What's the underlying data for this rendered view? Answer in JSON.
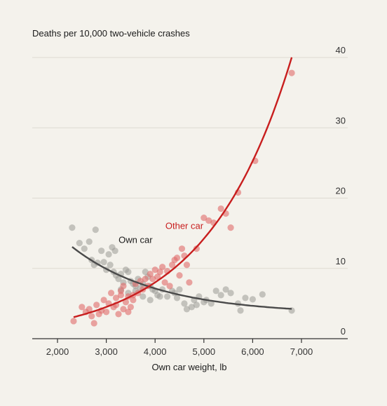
{
  "chart_data": {
    "type": "scatter",
    "title": "Deaths per 10,000 two-vehicle crashes",
    "xlabel": "Own car weight, lb",
    "ylabel": "",
    "xlim": [
      1500,
      7700
    ],
    "ylim": [
      0,
      40
    ],
    "x_ticks": [
      2000,
      3000,
      4000,
      5000,
      6000,
      7000
    ],
    "x_tick_labels": [
      "2,000",
      "3,000",
      "4,000",
      "5,000",
      "6,000",
      "7,000"
    ],
    "y_ticks": [
      0,
      10,
      20,
      30,
      40
    ],
    "y_tick_labels": [
      "0",
      "10",
      "20",
      "30",
      "40"
    ],
    "grid": true,
    "y_axis_side": "right",
    "series": [
      {
        "name": "Own car",
        "color": "#9a9a96",
        "line_color": "#4a4a4a",
        "points": [
          [
            2300,
            15.8
          ],
          [
            2450,
            13.6
          ],
          [
            2550,
            12.8
          ],
          [
            2650,
            13.8
          ],
          [
            2780,
            15.5
          ],
          [
            2700,
            11.2
          ],
          [
            2750,
            10.5
          ],
          [
            2820,
            10.8
          ],
          [
            2900,
            12.5
          ],
          [
            2950,
            10.9
          ],
          [
            3050,
            12.0
          ],
          [
            3120,
            13.0
          ],
          [
            3180,
            12.5
          ],
          [
            3000,
            9.8
          ],
          [
            3080,
            10.5
          ],
          [
            3150,
            9.5
          ],
          [
            3200,
            9.0
          ],
          [
            3250,
            8.5
          ],
          [
            3300,
            9.2
          ],
          [
            3350,
            8.0
          ],
          [
            3400,
            9.8
          ],
          [
            3450,
            9.5
          ],
          [
            3500,
            8.2
          ],
          [
            3550,
            7.8
          ],
          [
            3600,
            7.5
          ],
          [
            3650,
            8.5
          ],
          [
            3700,
            7.2
          ],
          [
            3750,
            7.8
          ],
          [
            3800,
            9.5
          ],
          [
            3850,
            8.8
          ],
          [
            3900,
            7.5
          ],
          [
            3950,
            7.0
          ],
          [
            4000,
            6.8
          ],
          [
            4050,
            6.2
          ],
          [
            3300,
            7.0
          ],
          [
            3450,
            6.5
          ],
          [
            3600,
            6.8
          ],
          [
            3750,
            6.0
          ],
          [
            3900,
            5.5
          ],
          [
            4100,
            6.0
          ],
          [
            4150,
            7.0
          ],
          [
            4250,
            6.0
          ],
          [
            4350,
            6.8
          ],
          [
            4400,
            6.5
          ],
          [
            4450,
            5.8
          ],
          [
            4500,
            7.0
          ],
          [
            4600,
            5.0
          ],
          [
            4650,
            4.2
          ],
          [
            4750,
            4.5
          ],
          [
            4800,
            5.5
          ],
          [
            4850,
            4.8
          ],
          [
            4900,
            6.0
          ],
          [
            5000,
            5.2
          ],
          [
            5050,
            5.5
          ],
          [
            5150,
            5.0
          ],
          [
            5250,
            6.8
          ],
          [
            5350,
            6.2
          ],
          [
            5450,
            7.0
          ],
          [
            5550,
            6.5
          ],
          [
            5700,
            5.0
          ],
          [
            5750,
            4.0
          ],
          [
            5850,
            5.8
          ],
          [
            6000,
            5.6
          ],
          [
            6200,
            6.3
          ],
          [
            6800,
            4.0
          ]
        ]
      },
      {
        "name": "Other car",
        "color": "#e06a6a",
        "line_color": "#c81e1e",
        "points": [
          [
            2330,
            2.5
          ],
          [
            2500,
            4.5
          ],
          [
            2580,
            3.8
          ],
          [
            2650,
            4.2
          ],
          [
            2700,
            3.2
          ],
          [
            2750,
            2.2
          ],
          [
            2800,
            4.8
          ],
          [
            2850,
            3.5
          ],
          [
            2900,
            4.0
          ],
          [
            2950,
            5.5
          ],
          [
            3000,
            3.8
          ],
          [
            3050,
            5.0
          ],
          [
            3100,
            6.5
          ],
          [
            3150,
            4.5
          ],
          [
            3200,
            5.8
          ],
          [
            3250,
            3.5
          ],
          [
            3300,
            6.8
          ],
          [
            3350,
            7.5
          ],
          [
            3400,
            5.2
          ],
          [
            3450,
            6.0
          ],
          [
            3500,
            4.5
          ],
          [
            3550,
            5.5
          ],
          [
            3600,
            7.8
          ],
          [
            3650,
            6.5
          ],
          [
            3700,
            8.2
          ],
          [
            3750,
            7.0
          ],
          [
            3800,
            8.5
          ],
          [
            3850,
            7.5
          ],
          [
            3900,
            9.2
          ],
          [
            3950,
            8.5
          ],
          [
            4000,
            9.8
          ],
          [
            4050,
            8.8
          ],
          [
            4100,
            9.5
          ],
          [
            4150,
            10.2
          ],
          [
            4200,
            8.0
          ],
          [
            4250,
            9.6
          ],
          [
            4300,
            7.5
          ],
          [
            4350,
            10.5
          ],
          [
            4400,
            11.2
          ],
          [
            4450,
            11.5
          ],
          [
            4500,
            9.0
          ],
          [
            4550,
            12.8
          ],
          [
            4600,
            11.8
          ],
          [
            4650,
            10.5
          ],
          [
            4700,
            8.0
          ],
          [
            3200,
            4.8
          ],
          [
            3350,
            4.2
          ],
          [
            3450,
            3.8
          ],
          [
            3550,
            6.2
          ],
          [
            3300,
            6.2
          ],
          [
            4850,
            12.8
          ],
          [
            5000,
            17.2
          ],
          [
            5100,
            16.8
          ],
          [
            5200,
            16.5
          ],
          [
            5350,
            18.5
          ],
          [
            5450,
            17.8
          ],
          [
            5550,
            15.8
          ],
          [
            5700,
            20.8
          ],
          [
            6050,
            25.3
          ],
          [
            6800,
            37.8
          ]
        ]
      }
    ],
    "annotations": [
      {
        "text": "Own car",
        "x": 3600,
        "y": 13.6,
        "color": "#1a1a1a"
      },
      {
        "text": "Other car",
        "x": 4600,
        "y": 15.6,
        "color": "#c81e1e"
      }
    ]
  }
}
